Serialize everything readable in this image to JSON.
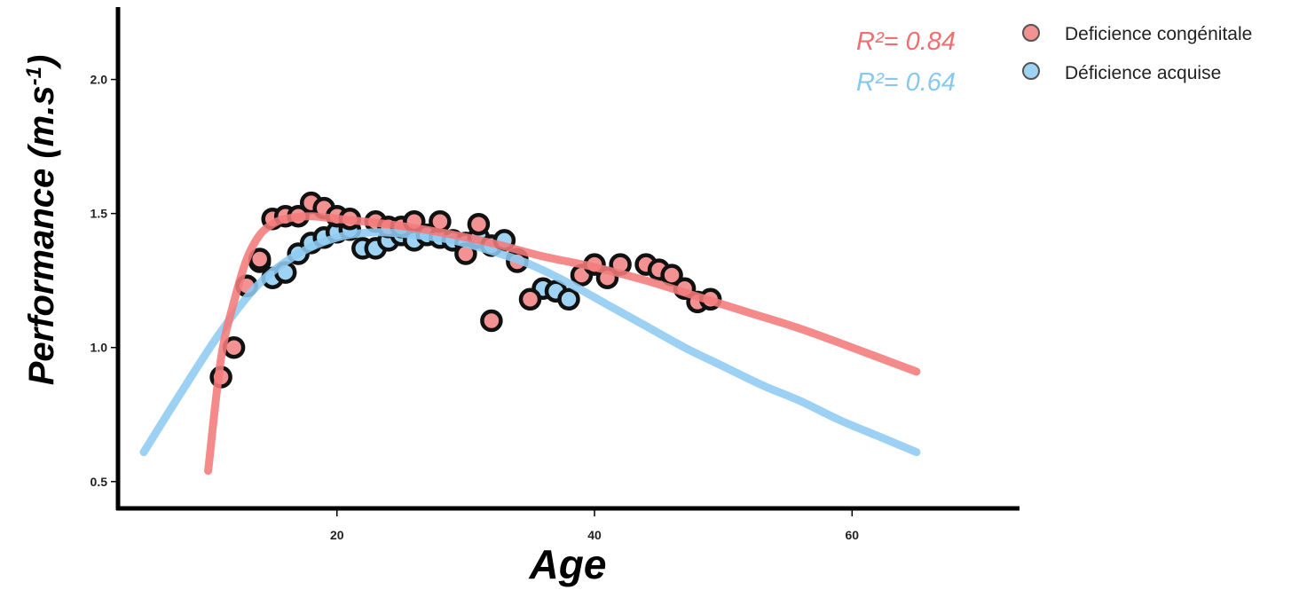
{
  "chart_data": {
    "type": "scatter",
    "title": "",
    "xlabel": "Age",
    "ylabel": "Performance (m.s",
    "ylabel_superscript": "-1",
    "ylabel_close": ")",
    "xlim": [
      3,
      73
    ],
    "ylim": [
      0.4,
      2.27
    ],
    "xticks": [
      20,
      40,
      60
    ],
    "yticks": [
      0.5,
      1.0,
      1.5,
      2.0
    ],
    "xtick_labels": [
      "20",
      "40",
      "60"
    ],
    "ytick_labels": [
      "0.5",
      "1.0",
      "1.5",
      "2.0"
    ],
    "grid": false,
    "legend_position": "top-right",
    "series": [
      {
        "name": "Déficience acquise",
        "color": "#9fd3f3",
        "curve_color": "#8fcbf1",
        "r2_label": "R²= 0.64",
        "r2_color": "#88c8ef",
        "points": [
          [
            13,
            1.23
          ],
          [
            14,
            1.32
          ],
          [
            15,
            1.26
          ],
          [
            16,
            1.28
          ],
          [
            17,
            1.35
          ],
          [
            18,
            1.39
          ],
          [
            19,
            1.41
          ],
          [
            20,
            1.43
          ],
          [
            21,
            1.44
          ],
          [
            22,
            1.37
          ],
          [
            23,
            1.37
          ],
          [
            24,
            1.4
          ],
          [
            25,
            1.42
          ],
          [
            26,
            1.4
          ],
          [
            27,
            1.42
          ],
          [
            28,
            1.41
          ],
          [
            29,
            1.4
          ],
          [
            30,
            1.39
          ],
          [
            31,
            1.41
          ],
          [
            32,
            1.38
          ],
          [
            33,
            1.4
          ],
          [
            34,
            1.33
          ],
          [
            36,
            1.22
          ],
          [
            37,
            1.21
          ],
          [
            38,
            1.18
          ]
        ],
        "fit": [
          [
            5,
            0.61
          ],
          [
            8,
            0.84
          ],
          [
            11,
            1.06
          ],
          [
            14,
            1.24
          ],
          [
            17,
            1.35
          ],
          [
            20,
            1.41
          ],
          [
            23,
            1.43
          ],
          [
            26,
            1.42
          ],
          [
            29,
            1.4
          ],
          [
            32,
            1.36
          ],
          [
            35,
            1.31
          ],
          [
            38,
            1.24
          ],
          [
            41,
            1.16
          ],
          [
            44,
            1.08
          ],
          [
            47,
            1.0
          ],
          [
            50,
            0.93
          ],
          [
            53,
            0.86
          ],
          [
            56,
            0.8
          ],
          [
            59,
            0.73
          ],
          [
            62,
            0.67
          ],
          [
            65,
            0.61
          ]
        ]
      },
      {
        "name": "Deficience congénitale",
        "color": "#f29292",
        "curve_color": "#f47a7b",
        "r2_label": "R²= 0.84",
        "r2_color": "#ee6f70",
        "points": [
          [
            11,
            0.89
          ],
          [
            12,
            1.0
          ],
          [
            13,
            1.23
          ],
          [
            14,
            1.33
          ],
          [
            15,
            1.48
          ],
          [
            16,
            1.49
          ],
          [
            17,
            1.49
          ],
          [
            18,
            1.54
          ],
          [
            19,
            1.52
          ],
          [
            20,
            1.49
          ],
          [
            21,
            1.48
          ],
          [
            23,
            1.47
          ],
          [
            24,
            1.45
          ],
          [
            25,
            1.45
          ],
          [
            26,
            1.47
          ],
          [
            28,
            1.47
          ],
          [
            30,
            1.35
          ],
          [
            31,
            1.46
          ],
          [
            32,
            1.1
          ],
          [
            34,
            1.32
          ],
          [
            35,
            1.18
          ],
          [
            39,
            1.27
          ],
          [
            40,
            1.31
          ],
          [
            41,
            1.26
          ],
          [
            42,
            1.31
          ],
          [
            44,
            1.31
          ],
          [
            45,
            1.29
          ],
          [
            46,
            1.27
          ],
          [
            47,
            1.22
          ],
          [
            48,
            1.17
          ],
          [
            49,
            1.18
          ]
        ],
        "fit": [
          [
            10,
            0.54
          ],
          [
            11,
            0.96
          ],
          [
            12,
            1.17
          ],
          [
            13,
            1.33
          ],
          [
            14,
            1.42
          ],
          [
            15,
            1.46
          ],
          [
            16,
            1.48
          ],
          [
            18,
            1.49
          ],
          [
            20,
            1.48
          ],
          [
            24,
            1.46
          ],
          [
            28,
            1.43
          ],
          [
            32,
            1.39
          ],
          [
            36,
            1.34
          ],
          [
            40,
            1.3
          ],
          [
            44,
            1.25
          ],
          [
            48,
            1.19
          ],
          [
            52,
            1.13
          ],
          [
            56,
            1.07
          ],
          [
            60,
            1.0
          ],
          [
            65,
            0.91
          ]
        ]
      }
    ]
  }
}
